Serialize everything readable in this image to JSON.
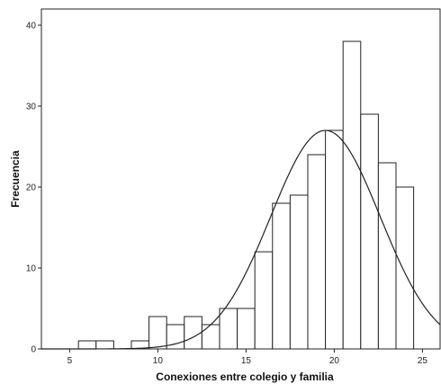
{
  "chart_data": {
    "type": "bar",
    "subtype": "histogram",
    "xlabel": "Conexiones entre colegio y familia",
    "ylabel": "Frecuencia",
    "xlim": [
      3.4,
      26.0
    ],
    "ylim": [
      0,
      42
    ],
    "xticks": [
      5,
      10,
      15,
      20,
      25
    ],
    "yticks": [
      0,
      10,
      20,
      30,
      40
    ],
    "bin_width": 1,
    "bins": [
      {
        "x0": 5.5,
        "x1": 6.5,
        "value": 1
      },
      {
        "x0": 6.5,
        "x1": 7.5,
        "value": 1
      },
      {
        "x0": 8.5,
        "x1": 9.5,
        "value": 1
      },
      {
        "x0": 9.5,
        "x1": 10.5,
        "value": 4
      },
      {
        "x0": 10.5,
        "x1": 11.5,
        "value": 3
      },
      {
        "x0": 11.5,
        "x1": 12.5,
        "value": 4
      },
      {
        "x0": 12.5,
        "x1": 13.5,
        "value": 3
      },
      {
        "x0": 13.5,
        "x1": 14.5,
        "value": 5
      },
      {
        "x0": 14.5,
        "x1": 15.5,
        "value": 5
      },
      {
        "x0": 15.5,
        "x1": 16.5,
        "value": 12
      },
      {
        "x0": 16.5,
        "x1": 17.5,
        "value": 18
      },
      {
        "x0": 17.5,
        "x1": 18.5,
        "value": 19
      },
      {
        "x0": 18.5,
        "x1": 19.5,
        "value": 24
      },
      {
        "x0": 19.5,
        "x1": 20.5,
        "value": 27
      },
      {
        "x0": 20.5,
        "x1": 21.5,
        "value": 38
      },
      {
        "x0": 21.5,
        "x1": 22.5,
        "value": 29
      },
      {
        "x0": 22.5,
        "x1": 23.5,
        "value": 23
      },
      {
        "x0": 23.5,
        "x1": 24.5,
        "value": 20
      }
    ],
    "normal_curve": {
      "mean": 19.5,
      "sd": 3.1,
      "peak": 27
    },
    "grid": false,
    "legend": "none",
    "colors": {
      "bar_fill": "#ffffff",
      "bar_stroke": "#222222",
      "curve": "#222222",
      "axis": "#222222"
    }
  }
}
